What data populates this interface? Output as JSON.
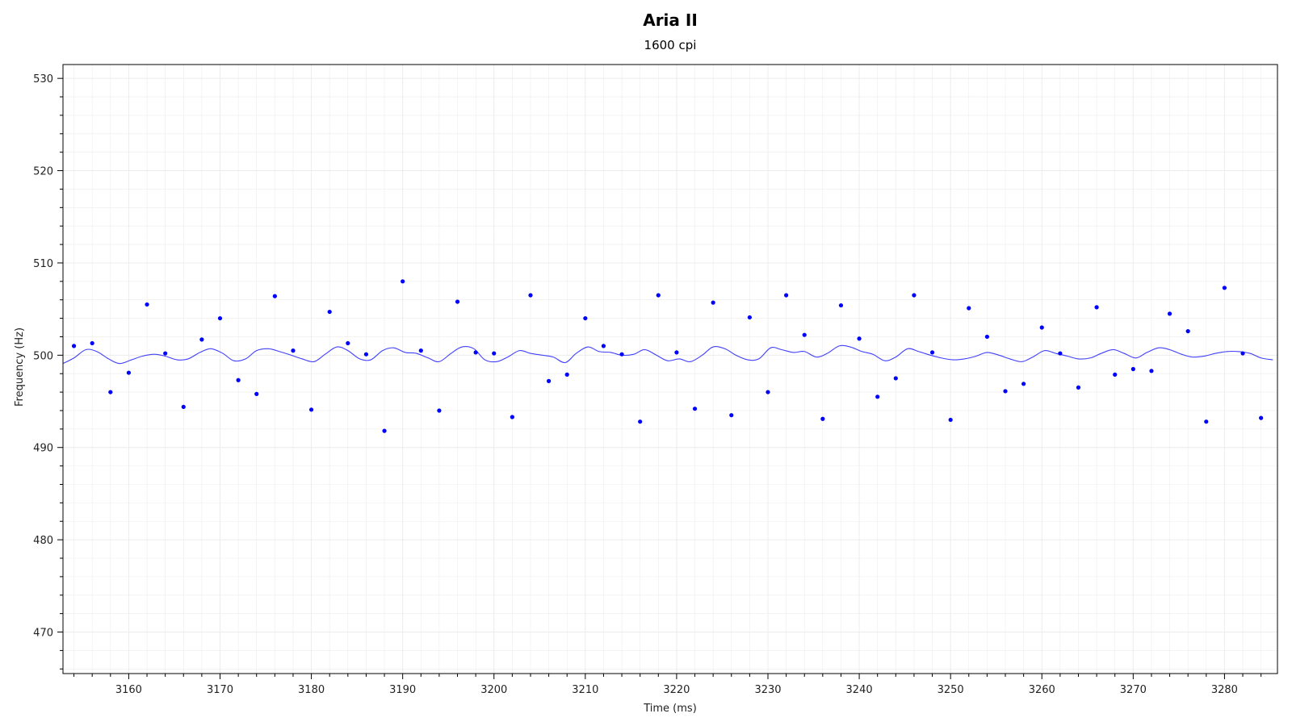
{
  "chart_data": {
    "type": "scatter",
    "title": "Aria II",
    "subtitle": "1600 cpi",
    "xlabel": "Time (ms)",
    "ylabel": "Frequency (Hz)",
    "xlim": [
      3152.8,
      3285.8
    ],
    "ylim": [
      465.5,
      531.5
    ],
    "x_ticks": [
      3160,
      3170,
      3180,
      3190,
      3200,
      3210,
      3220,
      3230,
      3240,
      3250,
      3260,
      3270,
      3280
    ],
    "y_ticks": [
      470,
      480,
      490,
      500,
      510,
      520,
      530
    ],
    "grid": true,
    "colors": {
      "points": "#0000ff",
      "line": "#4040ff",
      "grid": "#ececec",
      "frame": "#000000"
    },
    "series": [
      {
        "type": "scatter",
        "x": [
          3154,
          3156,
          3158,
          3160,
          3162,
          3164,
          3166,
          3168,
          3170,
          3172,
          3174,
          3176,
          3178,
          3180,
          3182,
          3184,
          3186,
          3188,
          3190,
          3192,
          3194,
          3196,
          3198,
          3200,
          3202,
          3204,
          3206,
          3208,
          3210,
          3212,
          3214,
          3216,
          3218,
          3220,
          3222,
          3224,
          3226,
          3228,
          3230,
          3232,
          3234,
          3236,
          3238,
          3240,
          3242,
          3244,
          3246,
          3248,
          3250,
          3252,
          3254,
          3256,
          3258,
          3260,
          3262,
          3264,
          3266,
          3268,
          3270,
          3272,
          3274,
          3276,
          3278,
          3280,
          3282,
          3284
        ],
        "y": [
          501.0,
          501.3,
          496.0,
          498.1,
          505.5,
          500.2,
          494.4,
          501.7,
          504.0,
          497.3,
          495.8,
          506.4,
          500.5,
          494.1,
          504.7,
          501.3,
          500.1,
          491.8,
          508.0,
          500.5,
          494.0,
          505.8,
          500.3,
          500.2,
          493.3,
          506.5,
          497.2,
          497.9,
          504.0,
          501.0,
          500.1,
          492.8,
          506.5,
          500.3,
          494.2,
          505.7,
          493.5,
          504.1,
          496.0,
          506.5,
          502.2,
          493.1,
          505.4,
          501.8,
          495.5,
          497.5,
          506.5,
          500.3,
          493.0,
          505.1,
          502.0,
          496.1,
          496.9,
          503.0,
          500.2,
          496.5,
          505.2,
          497.9,
          498.5,
          498.3,
          504.5,
          502.6,
          492.8,
          507.3,
          500.2,
          493.2
        ]
      },
      {
        "type": "line",
        "x": [
          3152.8,
          3154.0,
          3155.3,
          3156.5,
          3157.8,
          3159.0,
          3160.3,
          3161.5,
          3162.8,
          3164.0,
          3165.3,
          3166.5,
          3167.8,
          3169.0,
          3170.3,
          3171.5,
          3172.8,
          3174.0,
          3175.3,
          3176.5,
          3177.8,
          3179.0,
          3180.3,
          3181.5,
          3182.8,
          3184.0,
          3185.3,
          3186.5,
          3187.8,
          3189.0,
          3190.3,
          3191.5,
          3192.8,
          3194.0,
          3195.3,
          3196.5,
          3197.8,
          3199.0,
          3200.3,
          3201.5,
          3202.8,
          3204.0,
          3205.3,
          3206.5,
          3207.8,
          3209.0,
          3210.3,
          3211.5,
          3212.8,
          3214.0,
          3215.3,
          3216.5,
          3217.8,
          3219.0,
          3220.3,
          3221.5,
          3222.8,
          3224.0,
          3225.3,
          3226.5,
          3227.8,
          3229.0,
          3230.3,
          3231.5,
          3232.8,
          3234.0,
          3235.3,
          3236.5,
          3237.8,
          3239.0,
          3240.3,
          3241.5,
          3242.8,
          3244.0,
          3245.3,
          3246.5,
          3247.8,
          3249.0,
          3250.3,
          3251.5,
          3252.8,
          3254.0,
          3255.3,
          3256.5,
          3257.8,
          3259.0,
          3260.3,
          3261.5,
          3262.8,
          3264.0,
          3265.3,
          3266.5,
          3267.8,
          3269.0,
          3270.3,
          3271.5,
          3272.8,
          3274.0,
          3275.3,
          3276.5,
          3277.8,
          3279.0,
          3280.3,
          3281.5,
          3282.8,
          3284.0,
          3285.3
        ],
        "y": [
          499.1,
          499.7,
          500.6,
          500.4,
          499.6,
          499.1,
          499.5,
          499.9,
          500.1,
          499.9,
          499.5,
          499.6,
          500.3,
          500.7,
          500.2,
          499.4,
          499.6,
          500.5,
          500.7,
          500.4,
          500.0,
          499.6,
          499.3,
          500.1,
          500.9,
          500.5,
          499.6,
          499.5,
          500.5,
          500.8,
          500.3,
          500.2,
          499.7,
          499.3,
          500.2,
          500.9,
          500.7,
          499.5,
          499.3,
          499.8,
          500.5,
          500.2,
          500.0,
          499.8,
          499.2,
          500.2,
          500.9,
          500.4,
          500.3,
          500.0,
          500.1,
          500.6,
          500.0,
          499.4,
          499.6,
          499.3,
          500.0,
          500.9,
          500.7,
          500.0,
          499.5,
          499.6,
          500.8,
          500.6,
          500.3,
          500.4,
          499.8,
          500.2,
          501.0,
          500.9,
          500.4,
          500.1,
          499.4,
          499.8,
          500.7,
          500.4,
          500.0,
          499.7,
          499.5,
          499.6,
          499.9,
          500.3,
          500.0,
          499.6,
          499.3,
          499.8,
          500.5,
          500.2,
          499.9,
          499.6,
          499.7,
          500.2,
          500.6,
          500.2,
          499.7,
          500.3,
          500.8,
          500.6,
          500.1,
          499.8,
          499.9,
          500.2,
          500.4,
          500.4,
          500.2,
          499.7,
          499.5
        ]
      }
    ]
  }
}
